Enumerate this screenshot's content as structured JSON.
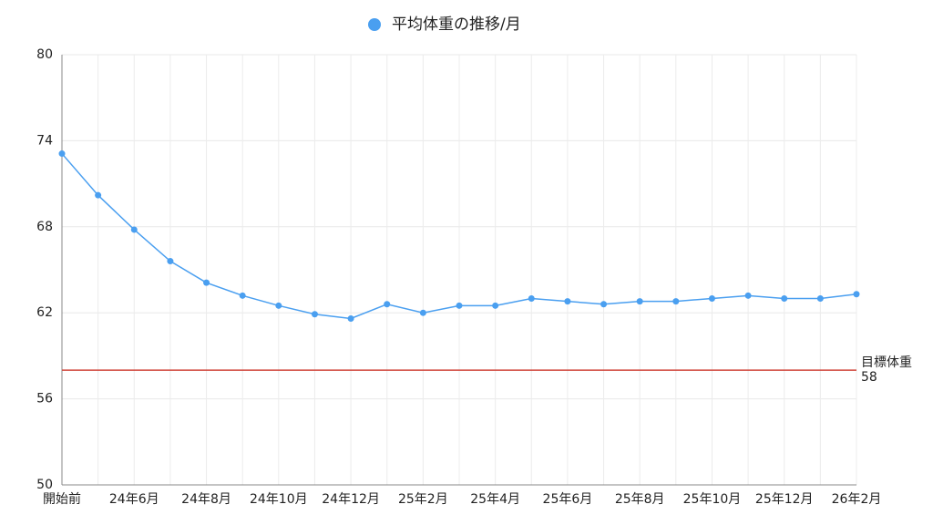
{
  "chart_data": {
    "type": "line",
    "categories": [
      "開始前",
      null,
      "24年6月",
      null,
      "24年8月",
      null,
      "24年10月",
      null,
      "24年12月",
      null,
      "25年2月",
      null,
      "25年4月",
      null,
      "25年6月",
      null,
      "25年8月",
      null,
      "25年10月",
      null,
      "25年12月",
      null,
      "26年2月"
    ],
    "series": [
      {
        "name": "平均体重の推移/月",
        "color": "#4a9ff0",
        "values": [
          73.1,
          70.2,
          67.8,
          65.6,
          64.1,
          63.2,
          62.5,
          61.9,
          61.6,
          62.6,
          62.0,
          62.5,
          62.5,
          63.0,
          62.8,
          62.6,
          62.8,
          62.8,
          63.0,
          63.2,
          63.0,
          63.0,
          63.3
        ]
      }
    ],
    "ylim": [
      50,
      80
    ],
    "yticks": [
      50,
      56,
      62,
      68,
      74,
      80
    ],
    "grid": true,
    "target": {
      "label": "目標体重",
      "value": 58,
      "color": "#d0463b"
    },
    "legend": "top"
  }
}
